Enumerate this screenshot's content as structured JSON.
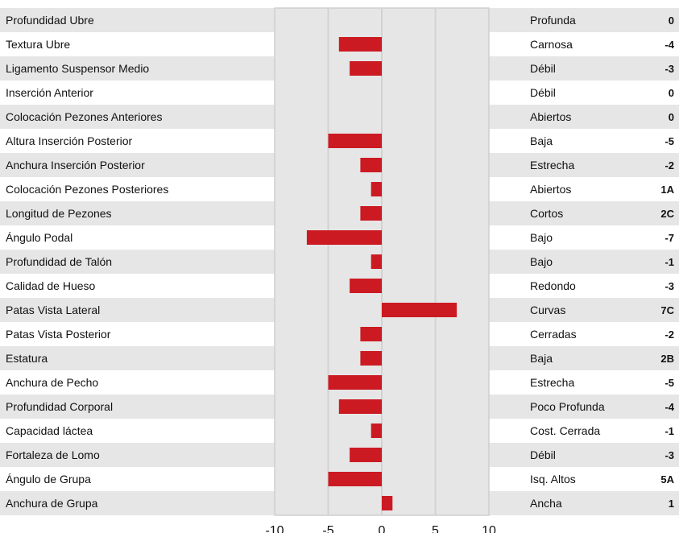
{
  "chart_data": {
    "type": "bar",
    "orientation": "horizontal",
    "xlim": [
      -10,
      10
    ],
    "xticks": [
      "-10",
      "-5",
      "0",
      "5",
      "10"
    ],
    "bar_color": "#cc1a22",
    "stripe_color": "#e6e6e6",
    "grid": true,
    "rows": [
      {
        "trait": "Profundidad Ubre",
        "descriptor": "Profunda",
        "label": "0",
        "value": 0
      },
      {
        "trait": "Textura Ubre",
        "descriptor": "Carnosa",
        "label": "-4",
        "value": -4
      },
      {
        "trait": "Ligamento Suspensor Medio",
        "descriptor": "Débil",
        "label": "-3",
        "value": -3
      },
      {
        "trait": "Inserción Anterior",
        "descriptor": "Débil",
        "label": "0",
        "value": 0
      },
      {
        "trait": "Colocación Pezones Anteriores",
        "descriptor": "Abiertos",
        "label": "0",
        "value": 0
      },
      {
        "trait": "Altura Inserción Posterior",
        "descriptor": "Baja",
        "label": "-5",
        "value": -5
      },
      {
        "trait": "Anchura Inserción Posterior",
        "descriptor": "Estrecha",
        "label": "-2",
        "value": -2
      },
      {
        "trait": "Colocación Pezones Posteriores",
        "descriptor": "Abiertos",
        "label": "1A",
        "value": -1
      },
      {
        "trait": "Longitud de Pezones",
        "descriptor": "Cortos",
        "label": "2C",
        "value": -2
      },
      {
        "trait": "Ángulo Podal",
        "descriptor": "Bajo",
        "label": "-7",
        "value": -7
      },
      {
        "trait": "Profundidad de Talón",
        "descriptor": "Bajo",
        "label": "-1",
        "value": -1
      },
      {
        "trait": "Calidad de Hueso",
        "descriptor": "Redondo",
        "label": "-3",
        "value": -3
      },
      {
        "trait": "Patas Vista Lateral",
        "descriptor": "Curvas",
        "label": "7C",
        "value": 7
      },
      {
        "trait": "Patas Vista Posterior",
        "descriptor": "Cerradas",
        "label": "-2",
        "value": -2
      },
      {
        "trait": "Estatura",
        "descriptor": "Baja",
        "label": "2B",
        "value": -2
      },
      {
        "trait": "Anchura de Pecho",
        "descriptor": "Estrecha",
        "label": "-5",
        "value": -5
      },
      {
        "trait": "Profundidad Corporal",
        "descriptor": "Poco Profunda",
        "label": "-4",
        "value": -4
      },
      {
        "trait": "Capacidad láctea",
        "descriptor": "Cost. Cerrada",
        "label": "-1",
        "value": -1
      },
      {
        "trait": "Fortaleza de Lomo",
        "descriptor": "Débil",
        "label": "-3",
        "value": -3
      },
      {
        "trait": "Ángulo de Grupa",
        "descriptor": "Isq. Altos",
        "label": "5A",
        "value": -5
      },
      {
        "trait": "Anchura de Grupa",
        "descriptor": "Ancha",
        "label": "1",
        "value": 1
      }
    ]
  }
}
